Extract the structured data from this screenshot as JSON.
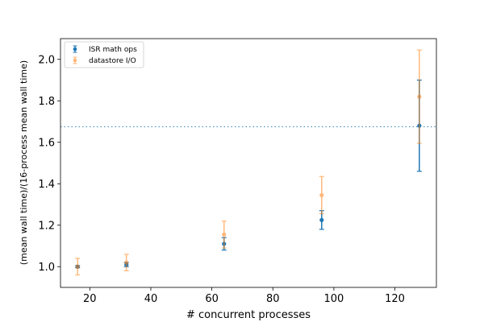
{
  "chart_data": {
    "type": "scatter",
    "title": "",
    "xlabel": "# concurrent processes",
    "ylabel": "(mean wall time)/(16-process mean wall time)",
    "xlim": [
      10.4,
      133.6
    ],
    "ylim": [
      0.9,
      2.1
    ],
    "xticks": [
      20,
      40,
      60,
      80,
      100,
      120
    ],
    "yticks": [
      1.0,
      1.2,
      1.4,
      1.6,
      1.8,
      2.0
    ],
    "ytick_labels": [
      "1.0",
      "1.2",
      "1.4",
      "1.6",
      "1.8",
      "2.0"
    ],
    "grid": false,
    "legend_position": "top-left",
    "reference_line": {
      "y": 1.675,
      "style": "dotted",
      "color": "#1f77b4"
    },
    "series": [
      {
        "name": "ISR math ops",
        "color": "#1f77b4",
        "opacity": 1.0,
        "x": [
          16,
          32,
          64,
          96,
          128
        ],
        "y": [
          1.0,
          1.01,
          1.11,
          1.225,
          1.68
        ],
        "yerr": [
          0.005,
          0.01,
          0.03,
          0.045,
          0.22
        ]
      },
      {
        "name": "datastore I/O",
        "color": "#ff7f0e",
        "opacity": 0.55,
        "x": [
          16,
          32,
          64,
          96,
          128
        ],
        "y": [
          1.0,
          1.02,
          1.155,
          1.345,
          1.82
        ],
        "yerr": [
          0.04,
          0.04,
          0.065,
          0.09,
          0.225
        ]
      }
    ]
  }
}
